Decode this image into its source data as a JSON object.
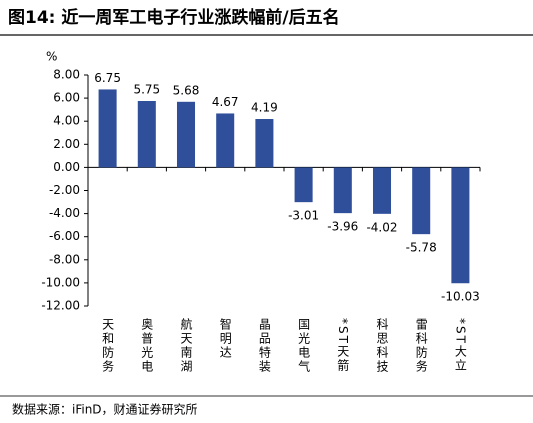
{
  "chart_data": {
    "type": "bar",
    "title": "图14: 近一周军工电子行业涨跌幅前/后五名",
    "ylabel": "%",
    "source": "数据来源：iFinD，财通证券研究所",
    "categories": [
      "天和防务",
      "奥普光电",
      "航天南湖",
      "智明达",
      "晶品特装",
      "国光电气",
      "*ST天箭",
      "科思科技",
      "雷科防务",
      "*ST大立"
    ],
    "values": [
      6.75,
      5.75,
      5.68,
      4.67,
      4.19,
      -3.01,
      -3.96,
      -4.02,
      -5.78,
      -10.03
    ],
    "color": "#2f4f9a",
    "ylim": [
      -12,
      8
    ],
    "yticks": [
      {
        "value": -12,
        "label": "-12.00"
      },
      {
        "value": -10,
        "label": "-10.00"
      },
      {
        "value": -8,
        "label": "-8.00"
      },
      {
        "value": -6,
        "label": "-6.00"
      },
      {
        "value": -4,
        "label": "-4.00"
      },
      {
        "value": -2,
        "label": "-2.00"
      },
      {
        "value": 0,
        "label": "0.00"
      },
      {
        "value": 2,
        "label": "2.00"
      },
      {
        "value": 4,
        "label": "4.00"
      },
      {
        "value": 6,
        "label": "6.00"
      },
      {
        "value": 8,
        "label": "8.00"
      }
    ],
    "grid": false
  }
}
